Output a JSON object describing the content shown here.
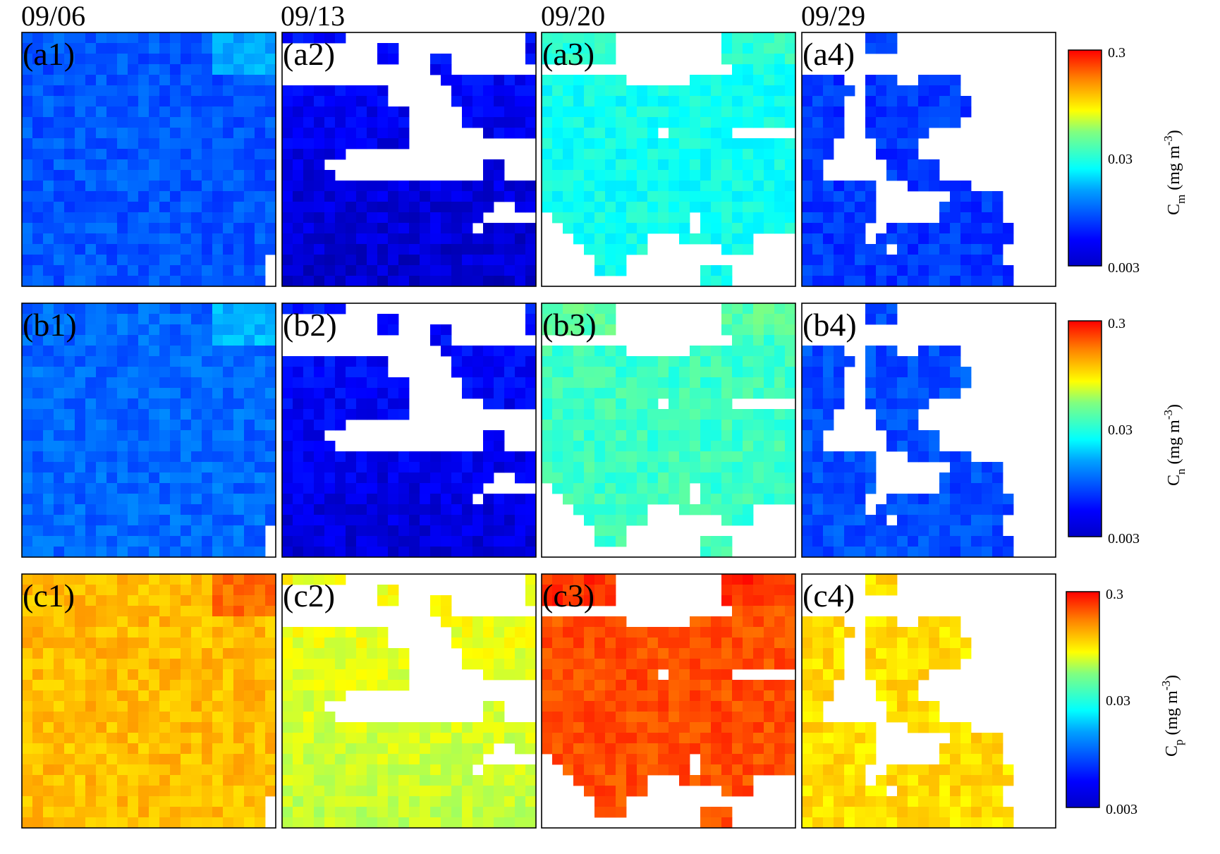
{
  "chart_data": {
    "type": "heatmap",
    "dates": [
      "09/06",
      "09/13",
      "09/20",
      "09/29"
    ],
    "grid_cells": 24,
    "color_scale": {
      "type": "log",
      "colormap": "jet",
      "ticks": [
        "0.3",
        "0.03",
        "0.003"
      ],
      "range": [
        0.003,
        0.3
      ]
    },
    "rows": [
      {
        "variable": "Cm",
        "colorbar_label": {
          "symbol": "C",
          "subscript": "m",
          "units": "(mg m",
          "exponent": "-3",
          "close": ")"
        },
        "panels": [
          {
            "label": "(a1)",
            "typical_value": 0.0078,
            "mask": "full"
          },
          {
            "label": "(a2)",
            "typical_value": 0.0055,
            "mask": "d13"
          },
          {
            "label": "(a3)",
            "typical_value": 0.018,
            "mask": "d20"
          },
          {
            "label": "(a4)",
            "typical_value": 0.0068,
            "mask": "d29"
          }
        ]
      },
      {
        "variable": "Cn",
        "colorbar_label": {
          "symbol": "C",
          "subscript": "n",
          "units": "(mg m",
          "exponent": "-3",
          "close": ")"
        },
        "panels": [
          {
            "label": "(b1)",
            "typical_value": 0.0085,
            "mask": "full"
          },
          {
            "label": "(b2)",
            "typical_value": 0.0058,
            "mask": "d13"
          },
          {
            "label": "(b3)",
            "typical_value": 0.022,
            "mask": "d20"
          },
          {
            "label": "(b4)",
            "typical_value": 0.0075,
            "mask": "d29"
          }
        ]
      },
      {
        "variable": "Cp",
        "colorbar_label": {
          "symbol": "C",
          "subscript": "p",
          "units": "(mg m",
          "exponent": "-3",
          "close": ")"
        },
        "panels": [
          {
            "label": "(c1)",
            "typical_value": 0.072,
            "mask": "full"
          },
          {
            "label": "(c2)",
            "typical_value": 0.052,
            "mask": "d13"
          },
          {
            "label": "(c3)",
            "typical_value": 0.12,
            "mask": "d20"
          },
          {
            "label": "(c4)",
            "typical_value": 0.062,
            "mask": "d29"
          }
        ]
      }
    ]
  }
}
